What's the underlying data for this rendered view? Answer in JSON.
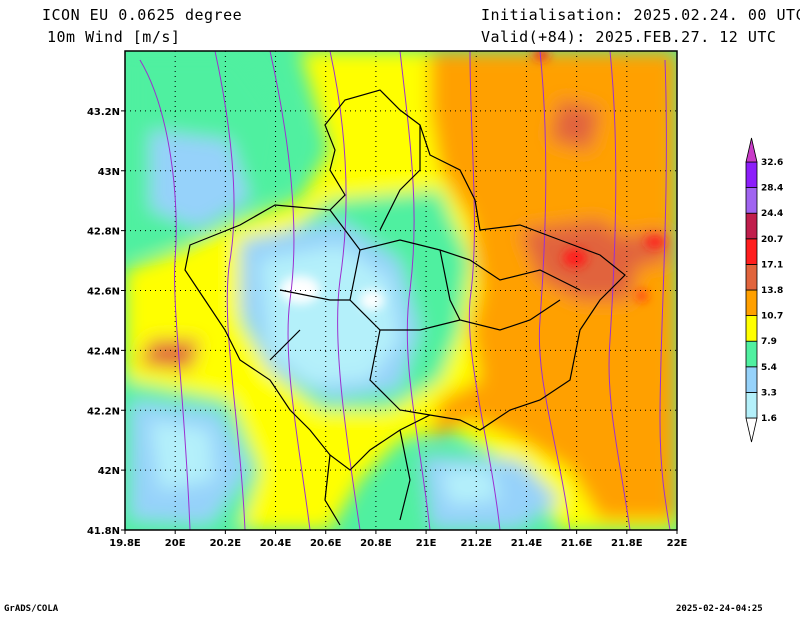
{
  "header": {
    "model": "ICON EU 0.0625 degree",
    "variable": "10m Wind [m/s]",
    "init": "Initialisation: 2025.02.24. 00 UTC",
    "valid": "Valid(+84): 2025.FEB.27. 12 UTC"
  },
  "footer": {
    "left": "GrADS/COLA",
    "right": "2025-02-24-04:25"
  },
  "map": {
    "lon_range": [
      19.8,
      22.0
    ],
    "lat_range": [
      41.8,
      43.4
    ],
    "lon_ticks": [
      "19.8E",
      "20E",
      "20.2E",
      "20.4E",
      "20.6E",
      "20.8E",
      "21E",
      "21.2E",
      "21.4E",
      "21.6E",
      "21.8E",
      "22E"
    ],
    "lat_ticks": [
      "41.8N",
      "42N",
      "42.2N",
      "42.4N",
      "42.6N",
      "42.8N",
      "43N",
      "43.2N"
    ],
    "grid": "dotted"
  },
  "colorbar": {
    "levels": [
      "1.6",
      "3.3",
      "5.4",
      "7.9",
      "10.7",
      "13.8",
      "17.1",
      "20.7",
      "24.4",
      "28.4",
      "32.6"
    ],
    "colors": [
      "#b4f0fa",
      "#96d2fa",
      "#50f0a0",
      "#ffff00",
      "#ffa000",
      "#e1643c",
      "#ff1e1e",
      "#c01e4c",
      "#a064f0",
      "#8c1efa"
    ]
  }
}
